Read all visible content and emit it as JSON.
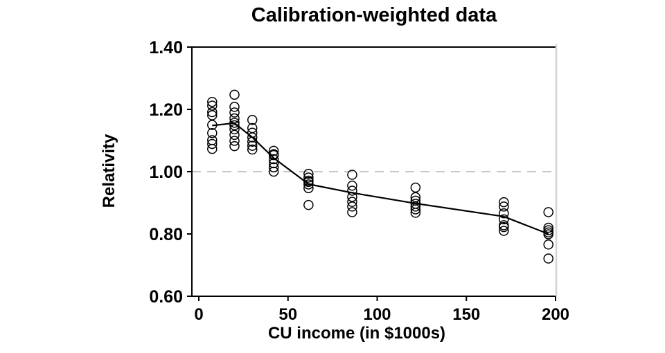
{
  "title": "Calibration-weighted data",
  "axes": {
    "x_label": "CU income (in $1000s)",
    "y_label": "Relativity"
  },
  "colors": {
    "points": "#000000",
    "mean_line": "#000000",
    "reference_line": "#b3b3b3",
    "frame": "#000000",
    "frame_right": "#d4d4d4",
    "background": "#ffffff"
  },
  "chart_data": {
    "type": "scatter",
    "title": "Calibration-weighted data",
    "xlabel": "CU income (in $1000s)",
    "ylabel": "Relativity",
    "xlim": [
      -4,
      200.5
    ],
    "ylim": [
      0.6,
      1.4
    ],
    "x_ticks": [
      0,
      50,
      100,
      150,
      200
    ],
    "y_ticks": [
      "0.60",
      "0.80",
      "1.00",
      "1.20",
      "1.40"
    ],
    "grid": false,
    "legend": "none",
    "reference_line_y": 1.0,
    "marker": "open-circle",
    "groups": [
      {
        "x": 7.5,
        "points": [
          1.224,
          1.212,
          1.191,
          1.181,
          1.15,
          1.124,
          1.101,
          1.089,
          1.073
        ]
      },
      {
        "x": 20,
        "points": [
          1.247,
          1.208,
          1.19,
          1.171,
          1.157,
          1.149,
          1.136,
          1.118,
          1.099,
          1.082
        ]
      },
      {
        "x": 30,
        "points": [
          1.166,
          1.14,
          1.125,
          1.11,
          1.096,
          1.083,
          1.071
        ]
      },
      {
        "x": 42,
        "points": [
          1.067,
          1.056,
          1.053,
          1.04,
          1.027,
          1.014,
          1.0
        ]
      },
      {
        "x": 61.5,
        "points": [
          0.993,
          0.981,
          0.971,
          0.967,
          0.959,
          0.947,
          0.893
        ]
      },
      {
        "x": 86,
        "points": [
          0.99,
          0.955,
          0.939,
          0.919,
          0.903,
          0.888,
          0.87
        ]
      },
      {
        "x": 121.5,
        "points": [
          0.949,
          0.918,
          0.907,
          0.897,
          0.888,
          0.879,
          0.868
        ]
      },
      {
        "x": 171,
        "points": [
          0.902,
          0.888,
          0.866,
          0.847,
          0.828,
          0.822,
          0.81
        ]
      },
      {
        "x": 196,
        "points": [
          0.87,
          0.82,
          0.812,
          0.805,
          0.799,
          0.766,
          0.721
        ]
      }
    ],
    "mean_line": [
      {
        "x": 7.5,
        "y": 1.148
      },
      {
        "x": 20,
        "y": 1.156
      },
      {
        "x": 30,
        "y": 1.11
      },
      {
        "x": 42,
        "y": 1.044
      },
      {
        "x": 61.5,
        "y": 0.96
      },
      {
        "x": 86,
        "y": 0.932
      },
      {
        "x": 121.5,
        "y": 0.898
      },
      {
        "x": 171,
        "y": 0.856
      },
      {
        "x": 196,
        "y": 0.8
      }
    ]
  }
}
